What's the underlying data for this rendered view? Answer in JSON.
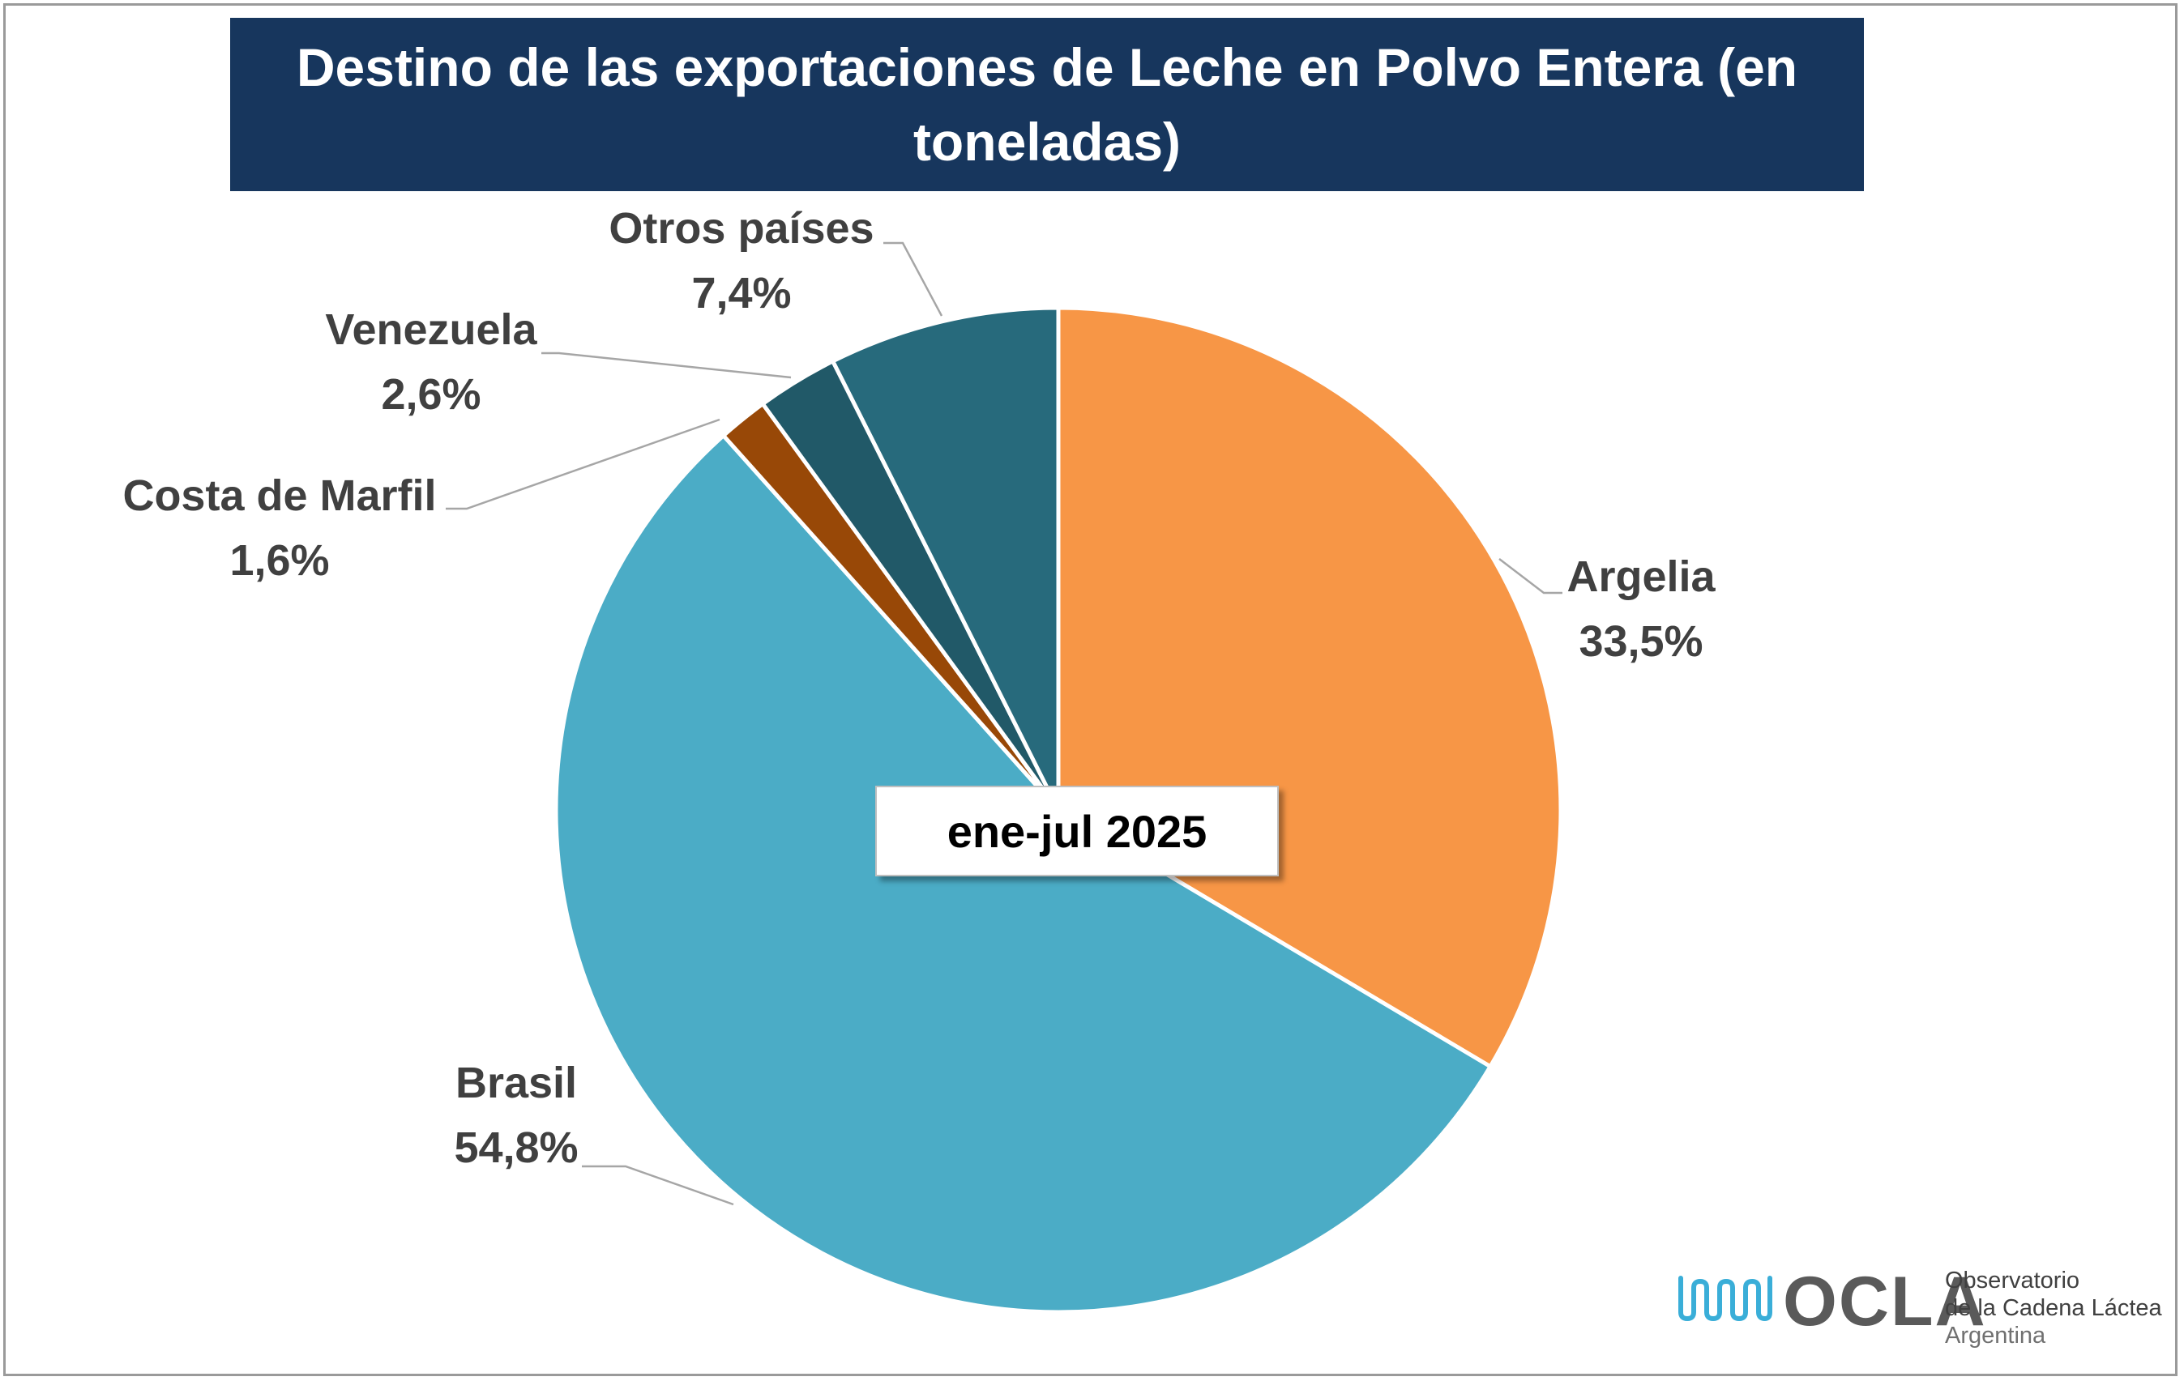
{
  "chart_data": {
    "type": "pie",
    "title": "Destino de las exportaciones de Leche en Polvo Entera (en toneladas)",
    "annotation": "ene-jul 2025",
    "slices": [
      {
        "name": "Argelia",
        "value": 33.5,
        "label": "33,5%",
        "color": "#f79646"
      },
      {
        "name": "Brasil",
        "value": 54.8,
        "label": "54,8%",
        "color": "#4bacc6"
      },
      {
        "name": "Costa de Marfil",
        "value": 1.6,
        "label": "1,6%",
        "color": "#984807"
      },
      {
        "name": "Venezuela",
        "value": 2.6,
        "label": "2,6%",
        "color": "#215968"
      },
      {
        "name": "Otros países",
        "value": 7.4,
        "label": "7,4%",
        "color": "#276a7c"
      }
    ],
    "legend": "none"
  },
  "logo": {
    "brand": "OCLA",
    "line1": "Observatorio",
    "line2": "de la Cadena Láctea",
    "line3": "Argentina",
    "colors": {
      "waves": "#3aaed8",
      "text": "#5a5a5a"
    }
  }
}
